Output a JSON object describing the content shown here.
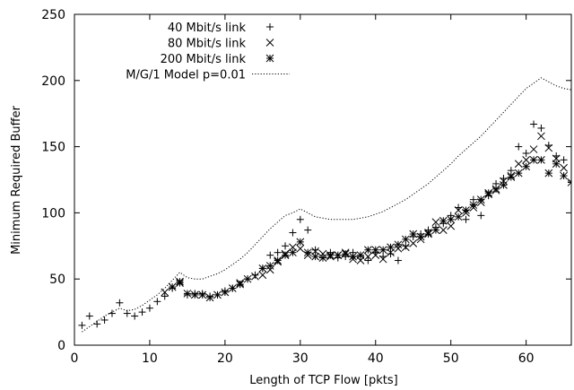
{
  "chart_data": {
    "type": "scatter",
    "xlabel": "Length of TCP Flow [pkts]",
    "ylabel": "Minimum Required Buffer",
    "xlim": [
      0,
      66
    ],
    "ylim": [
      0,
      250
    ],
    "xticks": [
      0,
      10,
      20,
      30,
      40,
      50,
      60
    ],
    "yticks": [
      0,
      50,
      100,
      150,
      200,
      250
    ],
    "grid": false,
    "legend_position": "top-left",
    "series": [
      {
        "name": "40 Mbit/s link",
        "marker": "plus",
        "points": [
          [
            1,
            15
          ],
          [
            2,
            22
          ],
          [
            3,
            16
          ],
          [
            4,
            19
          ],
          [
            5,
            24
          ],
          [
            6,
            32
          ],
          [
            7,
            24
          ],
          [
            8,
            22
          ],
          [
            9,
            25
          ],
          [
            10,
            28
          ],
          [
            11,
            33
          ],
          [
            12,
            37
          ],
          [
            13,
            43
          ],
          [
            14,
            47
          ],
          [
            15,
            38
          ],
          [
            16,
            39
          ],
          [
            17,
            39
          ],
          [
            18,
            37
          ],
          [
            19,
            38
          ],
          [
            20,
            41
          ],
          [
            21,
            43
          ],
          [
            22,
            46
          ],
          [
            23,
            50
          ],
          [
            24,
            53
          ],
          [
            25,
            58
          ],
          [
            26,
            68
          ],
          [
            27,
            70
          ],
          [
            28,
            75
          ],
          [
            29,
            85
          ],
          [
            30,
            95
          ],
          [
            31,
            87
          ],
          [
            32,
            72
          ],
          [
            33,
            66
          ],
          [
            34,
            70
          ],
          [
            35,
            66
          ],
          [
            36,
            67
          ],
          [
            37,
            70
          ],
          [
            38,
            67
          ],
          [
            39,
            64
          ],
          [
            40,
            70
          ],
          [
            41,
            67
          ],
          [
            42,
            69
          ],
          [
            43,
            64
          ],
          [
            44,
            75
          ],
          [
            45,
            82
          ],
          [
            46,
            84
          ],
          [
            47,
            87
          ],
          [
            48,
            89
          ],
          [
            49,
            92
          ],
          [
            50,
            98
          ],
          [
            51,
            104
          ],
          [
            52,
            95
          ],
          [
            53,
            110
          ],
          [
            54,
            98
          ],
          [
            55,
            113
          ],
          [
            56,
            122
          ],
          [
            57,
            126
          ],
          [
            58,
            132
          ],
          [
            59,
            150
          ],
          [
            60,
            145
          ],
          [
            61,
            167
          ],
          [
            62,
            164
          ],
          [
            63,
            151
          ],
          [
            64,
            143
          ],
          [
            65,
            140
          ],
          [
            66,
            124
          ]
        ]
      },
      {
        "name": "80 Mbit/s link",
        "marker": "cross",
        "points": [
          [
            12,
            40
          ],
          [
            13,
            44
          ],
          [
            14,
            47
          ],
          [
            22,
            47
          ],
          [
            24,
            52
          ],
          [
            25,
            53
          ],
          [
            26,
            57
          ],
          [
            27,
            63
          ],
          [
            28,
            69
          ],
          [
            29,
            74
          ],
          [
            30,
            73
          ],
          [
            31,
            68
          ],
          [
            32,
            71
          ],
          [
            33,
            69
          ],
          [
            34,
            67
          ],
          [
            35,
            68
          ],
          [
            36,
            70
          ],
          [
            37,
            65
          ],
          [
            38,
            64
          ],
          [
            39,
            67
          ],
          [
            40,
            68
          ],
          [
            41,
            65
          ],
          [
            42,
            70
          ],
          [
            43,
            73
          ],
          [
            44,
            74
          ],
          [
            45,
            77
          ],
          [
            46,
            80
          ],
          [
            47,
            85
          ],
          [
            48,
            93
          ],
          [
            49,
            87
          ],
          [
            50,
            90
          ],
          [
            51,
            102
          ],
          [
            52,
            100
          ],
          [
            53,
            104
          ],
          [
            54,
            108
          ],
          [
            55,
            114
          ],
          [
            56,
            117
          ],
          [
            57,
            124
          ],
          [
            58,
            128
          ],
          [
            59,
            137
          ],
          [
            60,
            140
          ],
          [
            61,
            148
          ],
          [
            62,
            158
          ],
          [
            63,
            149
          ],
          [
            64,
            141
          ],
          [
            65,
            134
          ]
        ]
      },
      {
        "name": "200 Mbit/s link",
        "marker": "star",
        "points": [
          [
            13,
            44
          ],
          [
            14,
            48
          ],
          [
            15,
            39
          ],
          [
            16,
            38
          ],
          [
            17,
            38
          ],
          [
            18,
            36
          ],
          [
            19,
            38
          ],
          [
            20,
            40
          ],
          [
            21,
            43
          ],
          [
            22,
            46
          ],
          [
            23,
            50
          ],
          [
            25,
            58
          ],
          [
            26,
            60
          ],
          [
            27,
            64
          ],
          [
            28,
            68
          ],
          [
            29,
            70
          ],
          [
            30,
            78
          ],
          [
            31,
            70
          ],
          [
            32,
            67
          ],
          [
            33,
            66
          ],
          [
            34,
            68
          ],
          [
            35,
            68
          ],
          [
            36,
            69
          ],
          [
            37,
            67
          ],
          [
            38,
            68
          ],
          [
            39,
            72
          ],
          [
            40,
            72
          ],
          [
            41,
            72
          ],
          [
            42,
            74
          ],
          [
            43,
            76
          ],
          [
            44,
            80
          ],
          [
            45,
            84
          ],
          [
            46,
            82
          ],
          [
            47,
            84
          ],
          [
            48,
            87
          ],
          [
            49,
            94
          ],
          [
            50,
            95
          ],
          [
            51,
            97
          ],
          [
            52,
            102
          ],
          [
            53,
            106
          ],
          [
            54,
            110
          ],
          [
            55,
            115
          ],
          [
            56,
            118
          ],
          [
            57,
            121
          ],
          [
            58,
            127
          ],
          [
            59,
            130
          ],
          [
            60,
            135
          ],
          [
            61,
            140
          ],
          [
            62,
            140
          ],
          [
            63,
            130
          ],
          [
            64,
            137
          ],
          [
            65,
            128
          ],
          [
            66,
            123
          ]
        ]
      },
      {
        "name": "M/G/1 Model p=0.01",
        "marker": "dotted-line",
        "points": [
          [
            1,
            10
          ],
          [
            2,
            14
          ],
          [
            3,
            18
          ],
          [
            4,
            22
          ],
          [
            5,
            25
          ],
          [
            6,
            28
          ],
          [
            7,
            26
          ],
          [
            8,
            27
          ],
          [
            9,
            30
          ],
          [
            10,
            34
          ],
          [
            11,
            38
          ],
          [
            12,
            43
          ],
          [
            13,
            49
          ],
          [
            14,
            55
          ],
          [
            15,
            51
          ],
          [
            16,
            50
          ],
          [
            17,
            50
          ],
          [
            18,
            52
          ],
          [
            19,
            54
          ],
          [
            20,
            57
          ],
          [
            21,
            61
          ],
          [
            22,
            65
          ],
          [
            23,
            70
          ],
          [
            24,
            76
          ],
          [
            25,
            82
          ],
          [
            26,
            88
          ],
          [
            27,
            93
          ],
          [
            28,
            98
          ],
          [
            29,
            100
          ],
          [
            30,
            103
          ],
          [
            31,
            100
          ],
          [
            32,
            97
          ],
          [
            33,
            96
          ],
          [
            34,
            95
          ],
          [
            35,
            95
          ],
          [
            36,
            95
          ],
          [
            37,
            95
          ],
          [
            38,
            96
          ],
          [
            39,
            97
          ],
          [
            40,
            99
          ],
          [
            41,
            101
          ],
          [
            42,
            104
          ],
          [
            43,
            107
          ],
          [
            44,
            110
          ],
          [
            45,
            114
          ],
          [
            46,
            118
          ],
          [
            47,
            122
          ],
          [
            48,
            127
          ],
          [
            49,
            132
          ],
          [
            50,
            137
          ],
          [
            51,
            143
          ],
          [
            52,
            148
          ],
          [
            53,
            153
          ],
          [
            54,
            158
          ],
          [
            55,
            164
          ],
          [
            56,
            170
          ],
          [
            57,
            176
          ],
          [
            58,
            182
          ],
          [
            59,
            188
          ],
          [
            60,
            194
          ],
          [
            61,
            198
          ],
          [
            62,
            202
          ],
          [
            63,
            199
          ],
          [
            64,
            196
          ],
          [
            65,
            194
          ],
          [
            66,
            193
          ]
        ]
      }
    ]
  }
}
